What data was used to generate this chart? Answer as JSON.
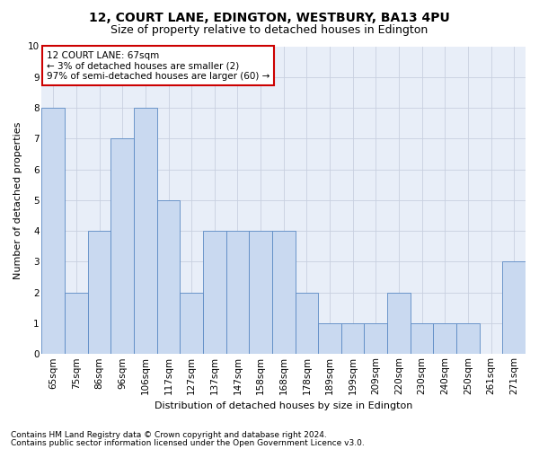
{
  "title": "12, COURT LANE, EDINGTON, WESTBURY, BA13 4PU",
  "subtitle": "Size of property relative to detached houses in Edington",
  "xlabel": "Distribution of detached houses by size in Edington",
  "ylabel": "Number of detached properties",
  "bins": [
    "65sqm",
    "75sqm",
    "86sqm",
    "96sqm",
    "106sqm",
    "117sqm",
    "127sqm",
    "137sqm",
    "147sqm",
    "158sqm",
    "168sqm",
    "178sqm",
    "189sqm",
    "199sqm",
    "209sqm",
    "220sqm",
    "230sqm",
    "240sqm",
    "250sqm",
    "261sqm",
    "271sqm"
  ],
  "values": [
    8,
    2,
    4,
    7,
    8,
    5,
    2,
    4,
    4,
    4,
    4,
    2,
    1,
    1,
    1,
    2,
    1,
    1,
    1,
    0,
    3
  ],
  "bar_color": "#c9d9f0",
  "bar_edge_color": "#5b8ac4",
  "annotation_box_text": "12 COURT LANE: 67sqm\n← 3% of detached houses are smaller (2)\n97% of semi-detached houses are larger (60) →",
  "ylim": [
    0,
    10
  ],
  "yticks": [
    0,
    1,
    2,
    3,
    4,
    5,
    6,
    7,
    8,
    9,
    10
  ],
  "footer_line1": "Contains HM Land Registry data © Crown copyright and database right 2024.",
  "footer_line2": "Contains public sector information licensed under the Open Government Licence v3.0.",
  "grid_color": "#c8d0e0",
  "axes_bg_color": "#e8eef8",
  "fig_bg_color": "#ffffff",
  "title_fontsize": 10,
  "subtitle_fontsize": 9,
  "xlabel_fontsize": 8,
  "ylabel_fontsize": 8,
  "tick_fontsize": 7.5,
  "annotation_fontsize": 7.5,
  "footer_fontsize": 6.5
}
